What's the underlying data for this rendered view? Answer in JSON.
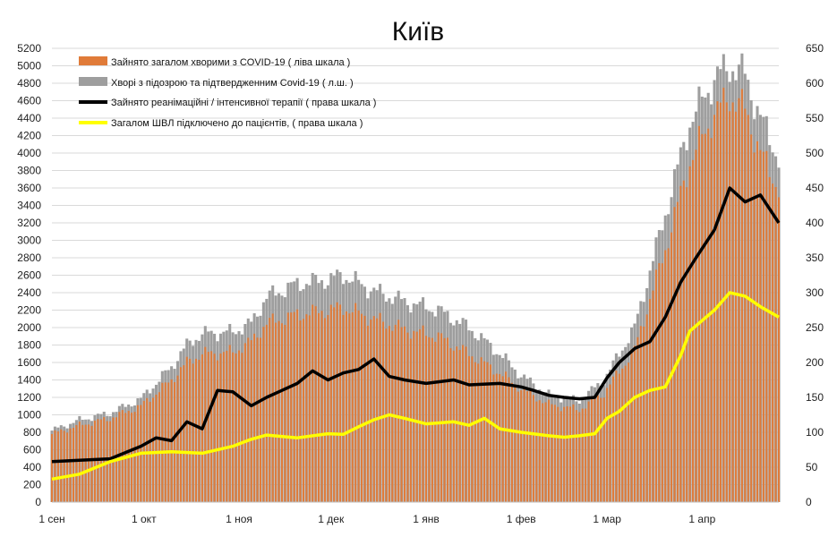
{
  "chart_data": {
    "type": "bar+line",
    "title": "Київ",
    "x_start": "2020-09-01",
    "x_end": "2021-04-26",
    "x_ticks": [
      "1 сен",
      "1 окт",
      "1 ноя",
      "1 дек",
      "1 янв",
      "1 фев",
      "1 мар",
      "1 апр"
    ],
    "y_left": {
      "min": 0,
      "max": 5200,
      "step": 200
    },
    "y_right": {
      "min": 0,
      "max": 650,
      "step": 50
    },
    "grid": "horizontal",
    "legend_position": "top-left",
    "series": [
      {
        "name": "Зайнято загалом хворими з COVID-19 ( ліва шкала )",
        "type": "bar",
        "axis": "left",
        "color": "#e07b39",
        "points": [
          [
            "2020-09-01",
            780
          ],
          [
            "2020-09-10",
            880
          ],
          [
            "2020-09-20",
            960
          ],
          [
            "2020-09-30",
            1100
          ],
          [
            "2020-10-10",
            1400
          ],
          [
            "2020-10-15",
            1600
          ],
          [
            "2020-10-20",
            1700
          ],
          [
            "2020-10-30",
            1720
          ],
          [
            "2020-11-05",
            1840
          ],
          [
            "2020-11-10",
            2050
          ],
          [
            "2020-11-20",
            2150
          ],
          [
            "2020-11-30",
            2200
          ],
          [
            "2020-12-05",
            2230
          ],
          [
            "2020-12-15",
            2100
          ],
          [
            "2020-12-25",
            1980
          ],
          [
            "2021-01-05",
            1900
          ],
          [
            "2021-01-15",
            1700
          ],
          [
            "2021-01-25",
            1480
          ],
          [
            "2021-02-01",
            1300
          ],
          [
            "2021-02-10",
            1120
          ],
          [
            "2021-02-20",
            1060
          ],
          [
            "2021-02-28",
            1250
          ],
          [
            "2021-03-10",
            1750
          ],
          [
            "2021-03-20",
            2900
          ],
          [
            "2021-03-28",
            3900
          ],
          [
            "2021-04-05",
            4450
          ],
          [
            "2021-04-10",
            4650
          ],
          [
            "2021-04-15",
            4500
          ],
          [
            "2021-04-20",
            4000
          ],
          [
            "2021-04-26",
            3600
          ]
        ]
      },
      {
        "name": "Хворі з підозрою та підтвердженним Covid-19 ( л.ш. )",
        "type": "bar",
        "axis": "left",
        "color": "#9e9e9e",
        "points": [
          [
            "2020-09-01",
            820
          ],
          [
            "2020-09-10",
            940
          ],
          [
            "2020-09-20",
            1020
          ],
          [
            "2020-09-30",
            1180
          ],
          [
            "2020-10-10",
            1550
          ],
          [
            "2020-10-15",
            1800
          ],
          [
            "2020-10-20",
            1930
          ],
          [
            "2020-10-30",
            1950
          ],
          [
            "2020-11-05",
            2050
          ],
          [
            "2020-11-10",
            2350
          ],
          [
            "2020-11-20",
            2500
          ],
          [
            "2020-11-30",
            2550
          ],
          [
            "2020-12-05",
            2600
          ],
          [
            "2020-12-15",
            2420
          ],
          [
            "2020-12-25",
            2300
          ],
          [
            "2021-01-05",
            2200
          ],
          [
            "2021-01-15",
            2000
          ],
          [
            "2021-01-25",
            1700
          ],
          [
            "2021-02-01",
            1450
          ],
          [
            "2021-02-10",
            1230
          ],
          [
            "2021-02-20",
            1160
          ],
          [
            "2021-02-28",
            1400
          ],
          [
            "2021-03-10",
            2000
          ],
          [
            "2021-03-20",
            3300
          ],
          [
            "2021-03-28",
            4350
          ],
          [
            "2021-04-05",
            4850
          ],
          [
            "2021-04-10",
            5000
          ],
          [
            "2021-04-15",
            4900
          ],
          [
            "2021-04-20",
            4400
          ],
          [
            "2021-04-26",
            3950
          ]
        ]
      },
      {
        "name": "Зайнято реанімаційні / інтенсивної терапії ( права шкала )",
        "type": "line",
        "axis": "right",
        "color": "#000000",
        "points": [
          [
            "2020-09-01",
            58
          ],
          [
            "2020-09-10",
            60
          ],
          [
            "2020-09-20",
            62
          ],
          [
            "2020-09-30",
            80
          ],
          [
            "2020-10-05",
            92
          ],
          [
            "2020-10-10",
            88
          ],
          [
            "2020-10-15",
            115
          ],
          [
            "2020-10-20",
            105
          ],
          [
            "2020-10-25",
            160
          ],
          [
            "2020-10-30",
            158
          ],
          [
            "2020-11-05",
            138
          ],
          [
            "2020-11-10",
            150
          ],
          [
            "2020-11-15",
            160
          ],
          [
            "2020-11-20",
            170
          ],
          [
            "2020-11-25",
            188
          ],
          [
            "2020-11-30",
            175
          ],
          [
            "2020-12-05",
            185
          ],
          [
            "2020-12-10",
            190
          ],
          [
            "2020-12-15",
            205
          ],
          [
            "2020-12-20",
            180
          ],
          [
            "2020-12-25",
            175
          ],
          [
            "2021-01-01",
            170
          ],
          [
            "2021-01-10",
            175
          ],
          [
            "2021-01-15",
            168
          ],
          [
            "2021-01-25",
            170
          ],
          [
            "2021-02-01",
            165
          ],
          [
            "2021-02-05",
            160
          ],
          [
            "2021-02-10",
            153
          ],
          [
            "2021-02-15",
            150
          ],
          [
            "2021-02-20",
            148
          ],
          [
            "2021-02-25",
            150
          ],
          [
            "2021-03-01",
            178
          ],
          [
            "2021-03-05",
            200
          ],
          [
            "2021-03-10",
            220
          ],
          [
            "2021-03-15",
            230
          ],
          [
            "2021-03-20",
            265
          ],
          [
            "2021-03-25",
            315
          ],
          [
            "2021-03-30",
            350
          ],
          [
            "2021-04-05",
            390
          ],
          [
            "2021-04-10",
            450
          ],
          [
            "2021-04-15",
            430
          ],
          [
            "2021-04-20",
            440
          ],
          [
            "2021-04-26",
            400
          ]
        ]
      },
      {
        "name": "Загалом ШВЛ  підключено до пацієнтів, ( права шкала )",
        "type": "line",
        "axis": "right",
        "color": "#ffff00",
        "points": [
          [
            "2020-09-01",
            33
          ],
          [
            "2020-09-10",
            40
          ],
          [
            "2020-09-20",
            58
          ],
          [
            "2020-09-30",
            70
          ],
          [
            "2020-10-10",
            72
          ],
          [
            "2020-10-20",
            70
          ],
          [
            "2020-10-30",
            80
          ],
          [
            "2020-11-05",
            90
          ],
          [
            "2020-11-10",
            96
          ],
          [
            "2020-11-20",
            92
          ],
          [
            "2020-11-30",
            98
          ],
          [
            "2020-12-05",
            97
          ],
          [
            "2020-12-10",
            108
          ],
          [
            "2020-12-15",
            118
          ],
          [
            "2020-12-20",
            125
          ],
          [
            "2020-12-25",
            120
          ],
          [
            "2021-01-01",
            112
          ],
          [
            "2021-01-10",
            115
          ],
          [
            "2021-01-15",
            110
          ],
          [
            "2021-01-20",
            120
          ],
          [
            "2021-01-25",
            105
          ],
          [
            "2021-02-01",
            100
          ],
          [
            "2021-02-10",
            95
          ],
          [
            "2021-02-15",
            93
          ],
          [
            "2021-02-20",
            95
          ],
          [
            "2021-02-25",
            98
          ],
          [
            "2021-03-01",
            120
          ],
          [
            "2021-03-05",
            130
          ],
          [
            "2021-03-10",
            150
          ],
          [
            "2021-03-15",
            160
          ],
          [
            "2021-03-20",
            165
          ],
          [
            "2021-03-25",
            210
          ],
          [
            "2021-03-28",
            245
          ],
          [
            "2021-04-01",
            260
          ],
          [
            "2021-04-05",
            275
          ],
          [
            "2021-04-10",
            300
          ],
          [
            "2021-04-15",
            295
          ],
          [
            "2021-04-20",
            280
          ],
          [
            "2021-04-26",
            265
          ]
        ]
      }
    ]
  }
}
